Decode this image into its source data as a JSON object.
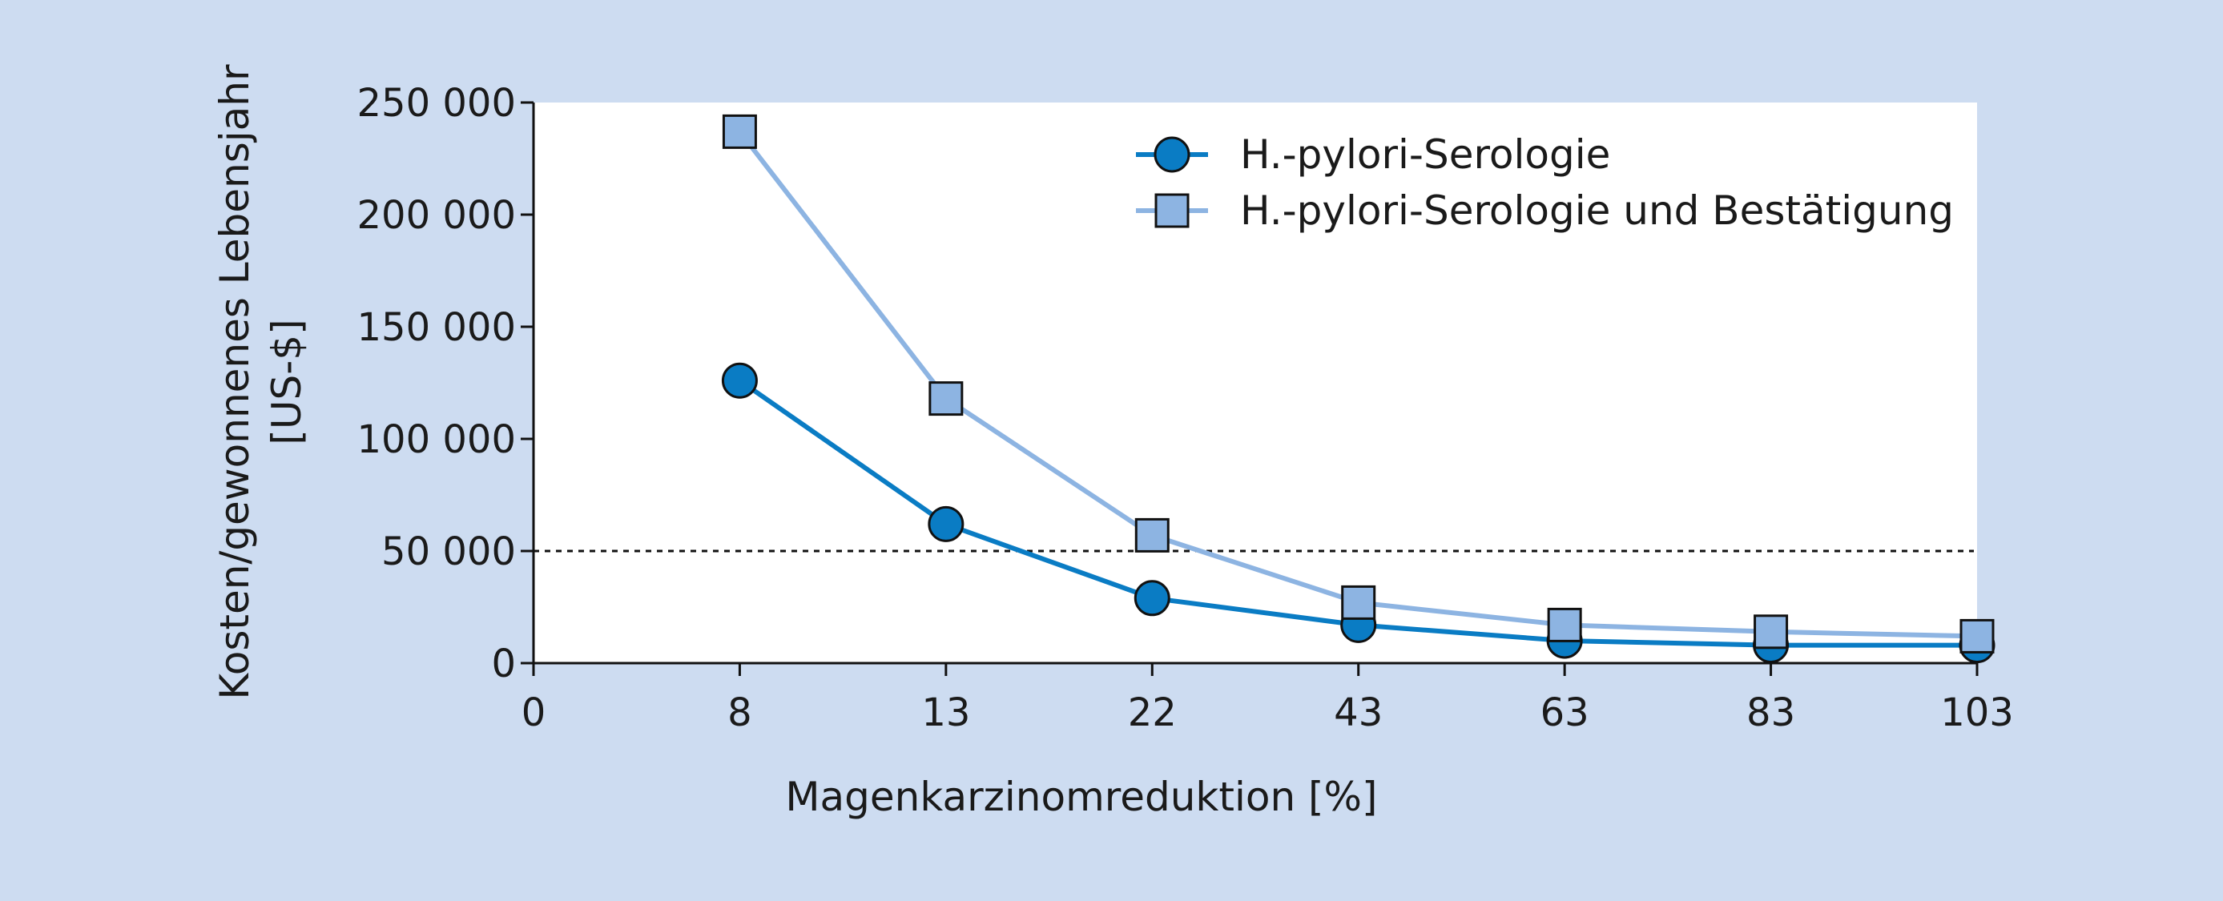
{
  "chart_data": {
    "type": "line",
    "x": [
      "0",
      "8",
      "13",
      "22",
      "43",
      "63",
      "83",
      "103"
    ],
    "xlabel": "Magenkarzinomreduktion [%]",
    "ylabel": [
      "Kosten/gewonnenes Lebensjahr",
      "[US-$]"
    ],
    "ylim": [
      0,
      250000
    ],
    "yticks": [
      {
        "value": 0,
        "label": "0"
      },
      {
        "value": 50000,
        "label": "50 000"
      },
      {
        "value": 100000,
        "label": "100 000"
      },
      {
        "value": 150000,
        "label": "150 000"
      },
      {
        "value": 200000,
        "label": "200 000"
      },
      {
        "value": 250000,
        "label": "250 000"
      }
    ],
    "reference_line": {
      "value": 50000,
      "style": "dashed"
    },
    "series": [
      {
        "name": "H.-pylori-Serologie",
        "marker": "circle",
        "color": "#0a7cc4",
        "points": [
          {
            "x": "8",
            "y": 126000
          },
          {
            "x": "13",
            "y": 62000
          },
          {
            "x": "22",
            "y": 29000
          },
          {
            "x": "43",
            "y": 17000
          },
          {
            "x": "63",
            "y": 10000
          },
          {
            "x": "83",
            "y": 8000
          },
          {
            "x": "103",
            "y": 8000
          }
        ]
      },
      {
        "name": "H.-pylori-Serologie und Bestätigung",
        "marker": "square",
        "color": "#8db4e2",
        "points": [
          {
            "x": "8",
            "y": 237000
          },
          {
            "x": "13",
            "y": 118000
          },
          {
            "x": "22",
            "y": 57000
          },
          {
            "x": "43",
            "y": 27000
          },
          {
            "x": "63",
            "y": 17000
          },
          {
            "x": "83",
            "y": 14000
          },
          {
            "x": "103",
            "y": 12000
          }
        ]
      }
    ],
    "legend_position": "top-right",
    "grid": false,
    "plot_background": "#ffffff",
    "figure_background": "#cddcf1"
  }
}
